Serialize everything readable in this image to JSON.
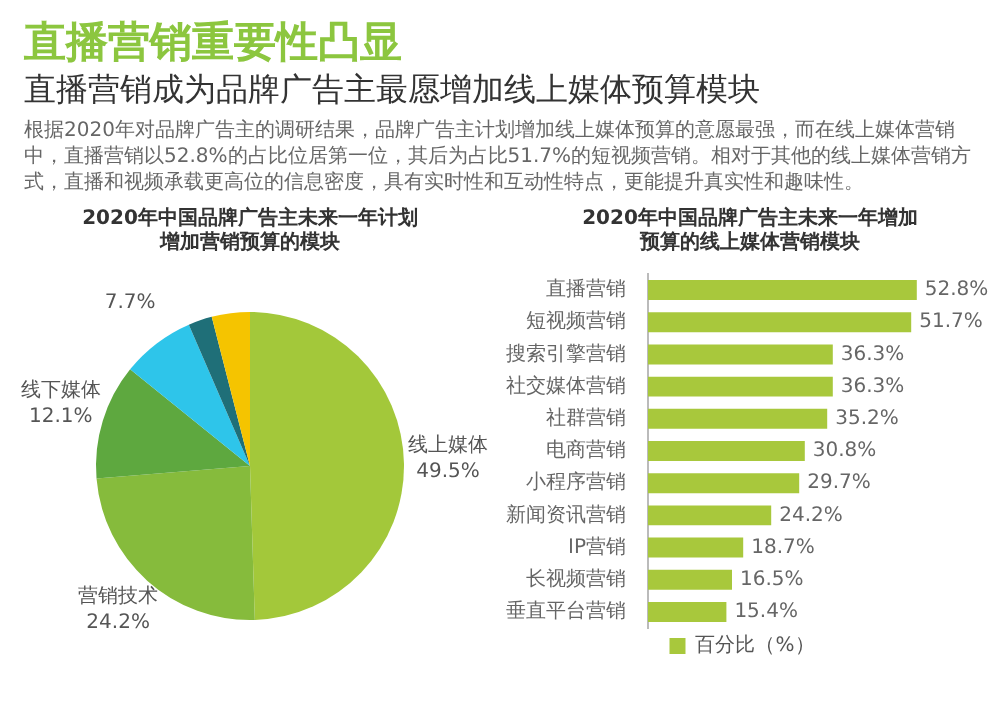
{
  "chart_data": [
    {
      "type": "other",
      "title": "直播营销重要性凸显",
      "subtitle": "直播营销成为品牌广告主最愿增加线上媒体预算模块",
      "annotations": [
        "根据2020年对品牌广告主的调研结果，品牌广告主计划增加线上媒体预算的意愿最强，而在线上媒体营销中，直播营销以52.8%的占比位居第一位，其后为占比51.7%的短视频营销。相对于其他的线上媒体营销方式，直播和视频承载更高位的信息密度，具有实时性和互动性特点，更能提升真实性和趣味性。"
      ]
    },
    {
      "type": "pie",
      "title": "2020年中国品牌广告主未来一年计划增加营销预算的模块",
      "categories": [
        "线上媒体",
        "营销技术",
        "线下媒体",
        null,
        null,
        null
      ],
      "values": [
        49.5,
        24.2,
        12.1,
        7.7,
        2.5,
        4.0
      ],
      "colors": [
        "#a3c83a",
        "#86bb3c",
        "#5ea83f",
        "#2ec5ea",
        "#1f6f78",
        "#f5c400"
      ],
      "value_labels": [
        "49.5%",
        "24.2%",
        "12.1%",
        "7.7%",
        null,
        null
      ]
    },
    {
      "type": "bar",
      "orientation": "horizontal",
      "title": "2020年中国品牌广告主未来一年增加预算的线上媒体营销模块",
      "categories": [
        "直播营销",
        "短视频营销",
        "搜索引擎营销",
        "社交媒体营销",
        "社群营销",
        "电商营销",
        "小程序营销",
        "新闻资讯营销",
        "IP营销",
        "长视频营销",
        "垂直平台营销"
      ],
      "series": [
        {
          "name": "百分比（%）",
          "color": "#a8c83c",
          "values": [
            52.8,
            51.7,
            36.3,
            36.3,
            35.2,
            30.8,
            29.7,
            24.2,
            18.7,
            16.5,
            15.4
          ],
          "value_labels": [
            "52.8%",
            "51.7%",
            "36.3%",
            "36.3%",
            "35.2%",
            "30.8%",
            "29.7%",
            "24.2%",
            "18.7%",
            "16.5%",
            "15.4%"
          ]
        }
      ],
      "legend": "bottom"
    }
  ]
}
